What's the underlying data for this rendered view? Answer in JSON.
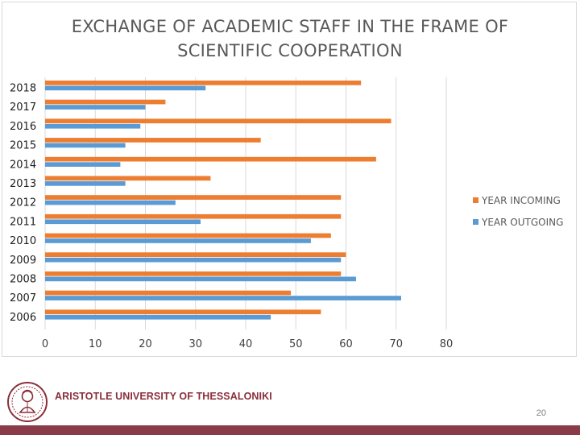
{
  "slide": {
    "organization": "ARISTOTLE UNIVERSITY OF THESSALONIKI",
    "page_number": "20",
    "colors": {
      "brand": "#8a3b48",
      "incoming": "#ed7d31",
      "outgoing": "#5b9bd5"
    }
  },
  "chart_data": {
    "type": "bar",
    "orientation": "horizontal",
    "title_lines": [
      "EXCHANGE OF ACADEMIC STAFF IN THE FRAME OF",
      "SCIENTIFIC COOPERATION"
    ],
    "categories": [
      "2018",
      "2017",
      "2016",
      "2015",
      "2014",
      "2013",
      "2012",
      "2011",
      "2010",
      "2009",
      "2008",
      "2007",
      "2006"
    ],
    "series": [
      {
        "name": "YEAR INCOMING",
        "color": "#ed7d31",
        "values": [
          63,
          24,
          69,
          43,
          66,
          33,
          59,
          59,
          57,
          60,
          59,
          49,
          55
        ]
      },
      {
        "name": "YEAR OUTGOING",
        "color": "#5b9bd5",
        "values": [
          32,
          20,
          19,
          16,
          15,
          16,
          26,
          31,
          53,
          59,
          62,
          71,
          45
        ]
      }
    ],
    "xlim": [
      0,
      80
    ],
    "xticks": [
      0,
      10,
      20,
      30,
      40,
      50,
      60,
      70,
      80
    ],
    "gridlines": true,
    "legend_position": "right"
  }
}
